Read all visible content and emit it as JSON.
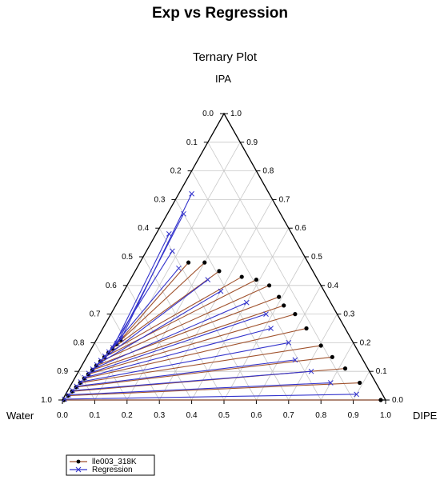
{
  "chart_data": {
    "type": "ternary",
    "title": "Exp vs Regression",
    "subtitle": "Ternary Plot",
    "vertices": {
      "top": "IPA",
      "left": "Water",
      "right": "DIPE"
    },
    "ticks": [
      "0.0",
      "0.1",
      "0.2",
      "0.3",
      "0.4",
      "0.5",
      "0.6",
      "0.7",
      "0.8",
      "0.9",
      "1.0"
    ],
    "grid": true,
    "legend": {
      "placement": "bottom-left"
    },
    "series": [
      {
        "name": "lle003_318K",
        "color": "#a0522d",
        "marker": "filled-circle",
        "tielines": [
          {
            "aqueous": [
              0.005,
              0.0
            ],
            "organic": [
              0.985,
              0.0
            ]
          },
          {
            "aqueous": [
              0.01,
              0.015
            ],
            "organic": [
              0.89,
              0.06
            ]
          },
          {
            "aqueous": [
              0.015,
              0.03
            ],
            "organic": [
              0.82,
              0.11
            ]
          },
          {
            "aqueous": [
              0.02,
              0.045
            ],
            "organic": [
              0.76,
              0.15
            ]
          },
          {
            "aqueous": [
              0.025,
              0.06
            ],
            "organic": [
              0.705,
              0.19
            ]
          },
          {
            "aqueous": [
              0.03,
              0.075
            ],
            "organic": [
              0.63,
              0.25
            ]
          },
          {
            "aqueous": [
              0.035,
              0.09
            ],
            "organic": [
              0.57,
              0.3
            ]
          },
          {
            "aqueous": [
              0.04,
              0.105
            ],
            "organic": [
              0.52,
              0.33
            ]
          },
          {
            "aqueous": [
              0.045,
              0.12
            ],
            "organic": [
              0.49,
              0.36
            ]
          },
          {
            "aqueous": [
              0.05,
              0.135
            ],
            "organic": [
              0.44,
              0.4
            ]
          },
          {
            "aqueous": [
              0.055,
              0.15
            ],
            "organic": [
              0.39,
              0.42
            ]
          },
          {
            "aqueous": [
              0.06,
              0.165
            ],
            "organic": [
              0.34,
              0.43
            ]
          },
          {
            "aqueous": [
              0.065,
              0.18
            ],
            "organic": [
              0.26,
              0.45
            ]
          },
          {
            "aqueous": [
              0.07,
              0.195
            ],
            "organic": [
              0.2,
              0.48
            ]
          },
          {
            "aqueous": [
              0.075,
              0.21
            ],
            "organic": [
              0.15,
              0.48
            ]
          }
        ]
      },
      {
        "name": "Regression",
        "color": "#3333cc",
        "marker": "x",
        "tielines": [
          {
            "aqueous": [
              0.005,
              0.003
            ],
            "organic": [
              0.9,
              0.02
            ]
          },
          {
            "aqueous": [
              0.01,
              0.018
            ],
            "organic": [
              0.8,
              0.06
            ]
          },
          {
            "aqueous": [
              0.015,
              0.033
            ],
            "organic": [
              0.72,
              0.1
            ]
          },
          {
            "aqueous": [
              0.02,
              0.048
            ],
            "organic": [
              0.65,
              0.14
            ]
          },
          {
            "aqueous": [
              0.025,
              0.063
            ],
            "organic": [
              0.6,
              0.2
            ]
          },
          {
            "aqueous": [
              0.03,
              0.078
            ],
            "organic": [
              0.52,
              0.25
            ]
          },
          {
            "aqueous": [
              0.035,
              0.093
            ],
            "organic": [
              0.48,
              0.3
            ]
          },
          {
            "aqueous": [
              0.04,
              0.108
            ],
            "organic": [
              0.4,
              0.34
            ]
          },
          {
            "aqueous": [
              0.045,
              0.123
            ],
            "organic": [
              0.3,
              0.38
            ]
          },
          {
            "aqueous": [
              0.05,
              0.138
            ],
            "organic": [
              0.24,
              0.42
            ]
          },
          {
            "aqueous": [
              0.055,
              0.153
            ],
            "organic": [
              0.13,
              0.46
            ]
          },
          {
            "aqueous": [
              0.06,
              0.168
            ],
            "organic": [
              0.08,
              0.52
            ]
          },
          {
            "aqueous": [
              0.065,
              0.183
            ],
            "organic": [
              0.04,
              0.58
            ]
          },
          {
            "aqueous": [
              0.07,
              0.198
            ],
            "organic": [
              0.05,
              0.65
            ]
          },
          {
            "aqueous": [
              0.075,
              0.213
            ],
            "organic": [
              0.04,
              0.72
            ]
          }
        ]
      }
    ]
  }
}
